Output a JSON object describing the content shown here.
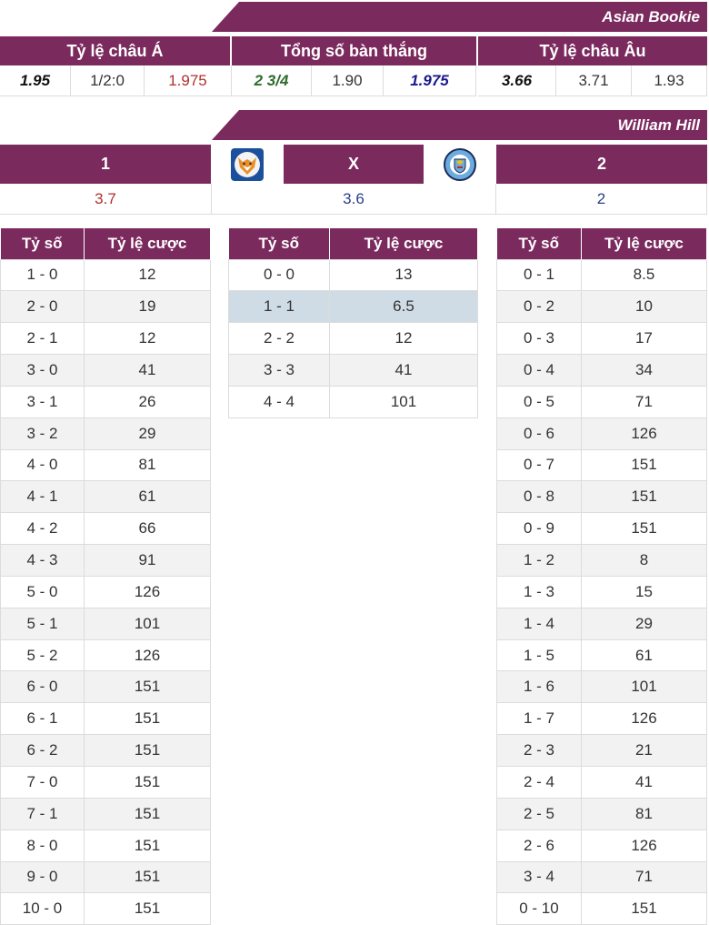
{
  "asian_bookie": {
    "title": "Asian Bookie",
    "headers": [
      "Tỷ lệ châu Á",
      "Tổng số bàn thắng",
      "Tỷ lệ châu Âu"
    ],
    "values": [
      {
        "text": "1.95",
        "color": "#111111",
        "bold": true
      },
      {
        "text": "1/2:0",
        "color": "#333333",
        "bold": false
      },
      {
        "text": "1.975",
        "color": "#b03030",
        "bold": false
      },
      {
        "text": "2 3/4",
        "color": "#2f6b2f",
        "bold": true
      },
      {
        "text": "1.90",
        "color": "#333333",
        "bold": false
      },
      {
        "text": "1.975",
        "color": "#1a1a8c",
        "bold": true
      },
      {
        "text": "3.66",
        "color": "#111111",
        "bold": true
      },
      {
        "text": "3.71",
        "color": "#333333",
        "bold": false
      },
      {
        "text": "1.93",
        "color": "#333333",
        "bold": false
      }
    ]
  },
  "william_hill": {
    "title": "William Hill",
    "col1_label": "1",
    "colx_label": "X",
    "col2_label": "2",
    "home_logo": "leicester-fox-crest",
    "away_logo": "man-city-crest",
    "odds": [
      {
        "text": "3.7",
        "color": "#b03030"
      },
      {
        "text": "3.6",
        "color": "#2a3f8c"
      },
      {
        "text": "2",
        "color": "#2a3f8c"
      }
    ]
  },
  "score_tables": {
    "header_score": "Tỷ số",
    "header_odds": "Tỷ lệ cược",
    "home": [
      [
        "1 - 0",
        "12"
      ],
      [
        "2 - 0",
        "19"
      ],
      [
        "2 - 1",
        "12"
      ],
      [
        "3 - 0",
        "41"
      ],
      [
        "3 - 1",
        "26"
      ],
      [
        "3 - 2",
        "29"
      ],
      [
        "4 - 0",
        "81"
      ],
      [
        "4 - 1",
        "61"
      ],
      [
        "4 - 2",
        "66"
      ],
      [
        "4 - 3",
        "91"
      ],
      [
        "5 - 0",
        "126"
      ],
      [
        "5 - 1",
        "101"
      ],
      [
        "5 - 2",
        "126"
      ],
      [
        "6 - 0",
        "151"
      ],
      [
        "6 - 1",
        "151"
      ],
      [
        "6 - 2",
        "151"
      ],
      [
        "7 - 0",
        "151"
      ],
      [
        "7 - 1",
        "151"
      ],
      [
        "8 - 0",
        "151"
      ],
      [
        "9 - 0",
        "151"
      ],
      [
        "10 - 0",
        "151"
      ]
    ],
    "draw": [
      [
        "0 - 0",
        "13"
      ],
      [
        "1 - 1",
        "6.5"
      ],
      [
        "2 - 2",
        "12"
      ],
      [
        "3 - 3",
        "41"
      ],
      [
        "4 - 4",
        "101"
      ]
    ],
    "draw_highlight_index": 1,
    "away": [
      [
        "0 - 1",
        "8.5"
      ],
      [
        "0 - 2",
        "10"
      ],
      [
        "0 - 3",
        "17"
      ],
      [
        "0 - 4",
        "34"
      ],
      [
        "0 - 5",
        "71"
      ],
      [
        "0 - 6",
        "126"
      ],
      [
        "0 - 7",
        "151"
      ],
      [
        "0 - 8",
        "151"
      ],
      [
        "0 - 9",
        "151"
      ],
      [
        "1 - 2",
        "8"
      ],
      [
        "1 - 3",
        "15"
      ],
      [
        "1 - 4",
        "29"
      ],
      [
        "1 - 5",
        "61"
      ],
      [
        "1 - 6",
        "101"
      ],
      [
        "1 - 7",
        "126"
      ],
      [
        "2 - 3",
        "21"
      ],
      [
        "2 - 4",
        "41"
      ],
      [
        "2 - 5",
        "81"
      ],
      [
        "2 - 6",
        "126"
      ],
      [
        "3 - 4",
        "71"
      ],
      [
        "0 - 10",
        "151"
      ]
    ]
  },
  "colors": {
    "brand": "#7b2a5e",
    "highlight": "#cfdce6",
    "stripe": "#f2f2f2"
  }
}
